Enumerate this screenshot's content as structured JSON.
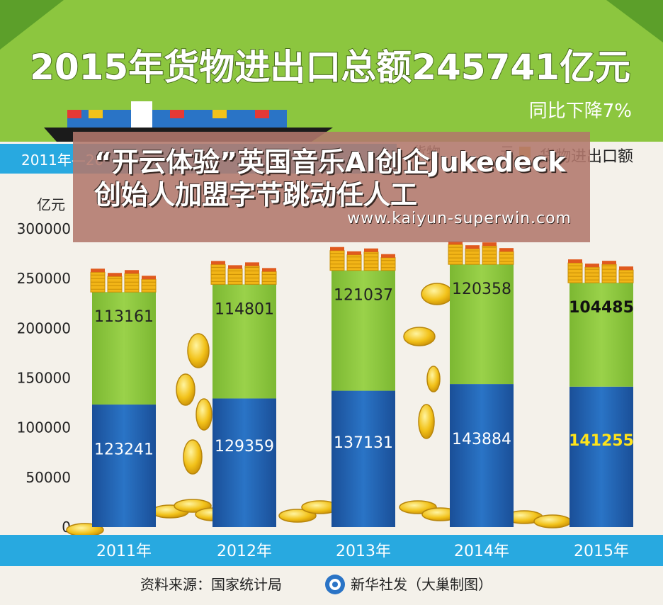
{
  "header": {
    "title": "2015年货物进出口总额245741亿元",
    "subtitle": "同比下降7%"
  },
  "legend": {
    "range_label_partial": "2011年—20",
    "range_label_tail": "总额",
    "item_partial_left": "货物",
    "item_partial_right": "元",
    "item_total": "货物进出口额"
  },
  "overlay": {
    "headline": "“开云体验”英国音乐AI创企Jukedeck创始人加盟字节跳动任人工",
    "url": "www.kaiyun-superwin.com"
  },
  "chart_data": {
    "type": "bar",
    "stacked": true,
    "categories": [
      "2011年",
      "2012年",
      "2013年",
      "2014年",
      "2015年"
    ],
    "series": [
      {
        "values": [
          123241,
          129359,
          137131,
          143884,
          141255
        ],
        "color": "#1d5fae"
      },
      {
        "values": [
          113161,
          114801,
          121037,
          120358,
          104485
        ],
        "color": "#8cc63f"
      }
    ],
    "ylabel": "亿元",
    "ylim": [
      0,
      300000
    ],
    "yticks": [
      "0",
      "50000",
      "100000",
      "150000",
      "200000",
      "250000",
      "300000"
    ],
    "data_labels": {
      "bottom": [
        "123241",
        "129359",
        "137131",
        "143884",
        "141255"
      ],
      "top": [
        "113161",
        "114801",
        "121037",
        "120358",
        "104485"
      ]
    },
    "grid": false,
    "legend": "top-right"
  },
  "footer": {
    "source": "资料来源：国家统计局",
    "agency": "新华社发（大巢制图）"
  }
}
